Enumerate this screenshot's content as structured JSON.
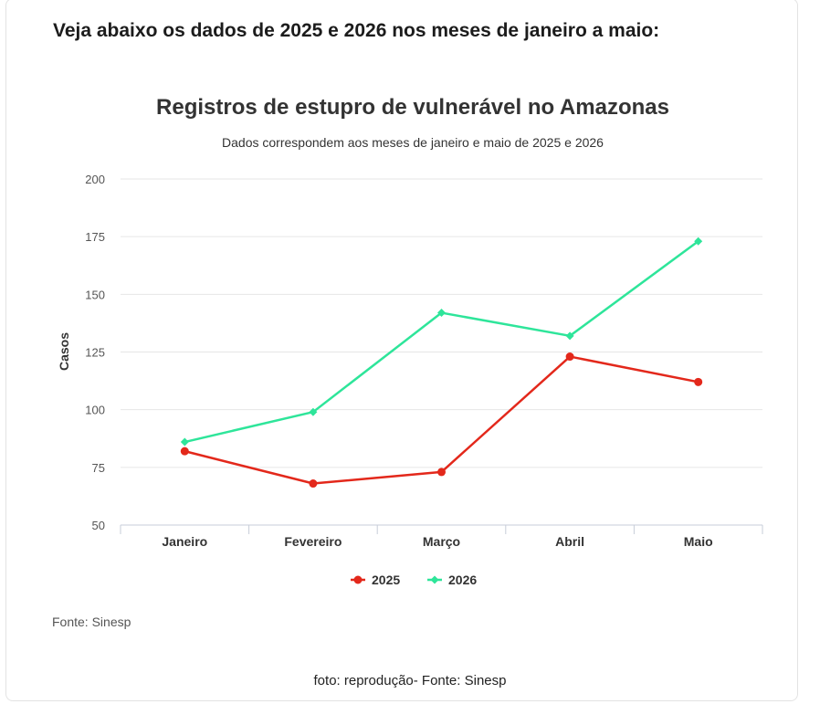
{
  "heading": "Veja abaixo os dados de 2025 e 2026 nos meses de janeiro a maio:",
  "source": "Fonte: Sinesp",
  "caption": "foto: reprodução- Fonte: Sinesp",
  "chart_data": {
    "type": "line",
    "title": "Registros de estupro de vulnerável no Amazonas",
    "subtitle": "Dados correspondem aos meses de janeiro e maio de 2025 e 2026",
    "xlabel": "",
    "ylabel": "Casos",
    "categories": [
      "Janeiro",
      "Fevereiro",
      "Março",
      "Abril",
      "Maio"
    ],
    "ylim": [
      50,
      200
    ],
    "yticks": [
      50,
      75,
      100,
      125,
      150,
      175,
      200
    ],
    "grid": true,
    "legend": "bottom",
    "series": [
      {
        "name": "2025",
        "color": "#e3281b",
        "marker": "circle",
        "values": [
          82,
          68,
          73,
          123,
          112
        ]
      },
      {
        "name": "2026",
        "color": "#2ee59a",
        "marker": "diamond",
        "values": [
          86,
          99,
          142,
          132,
          173
        ]
      }
    ]
  }
}
